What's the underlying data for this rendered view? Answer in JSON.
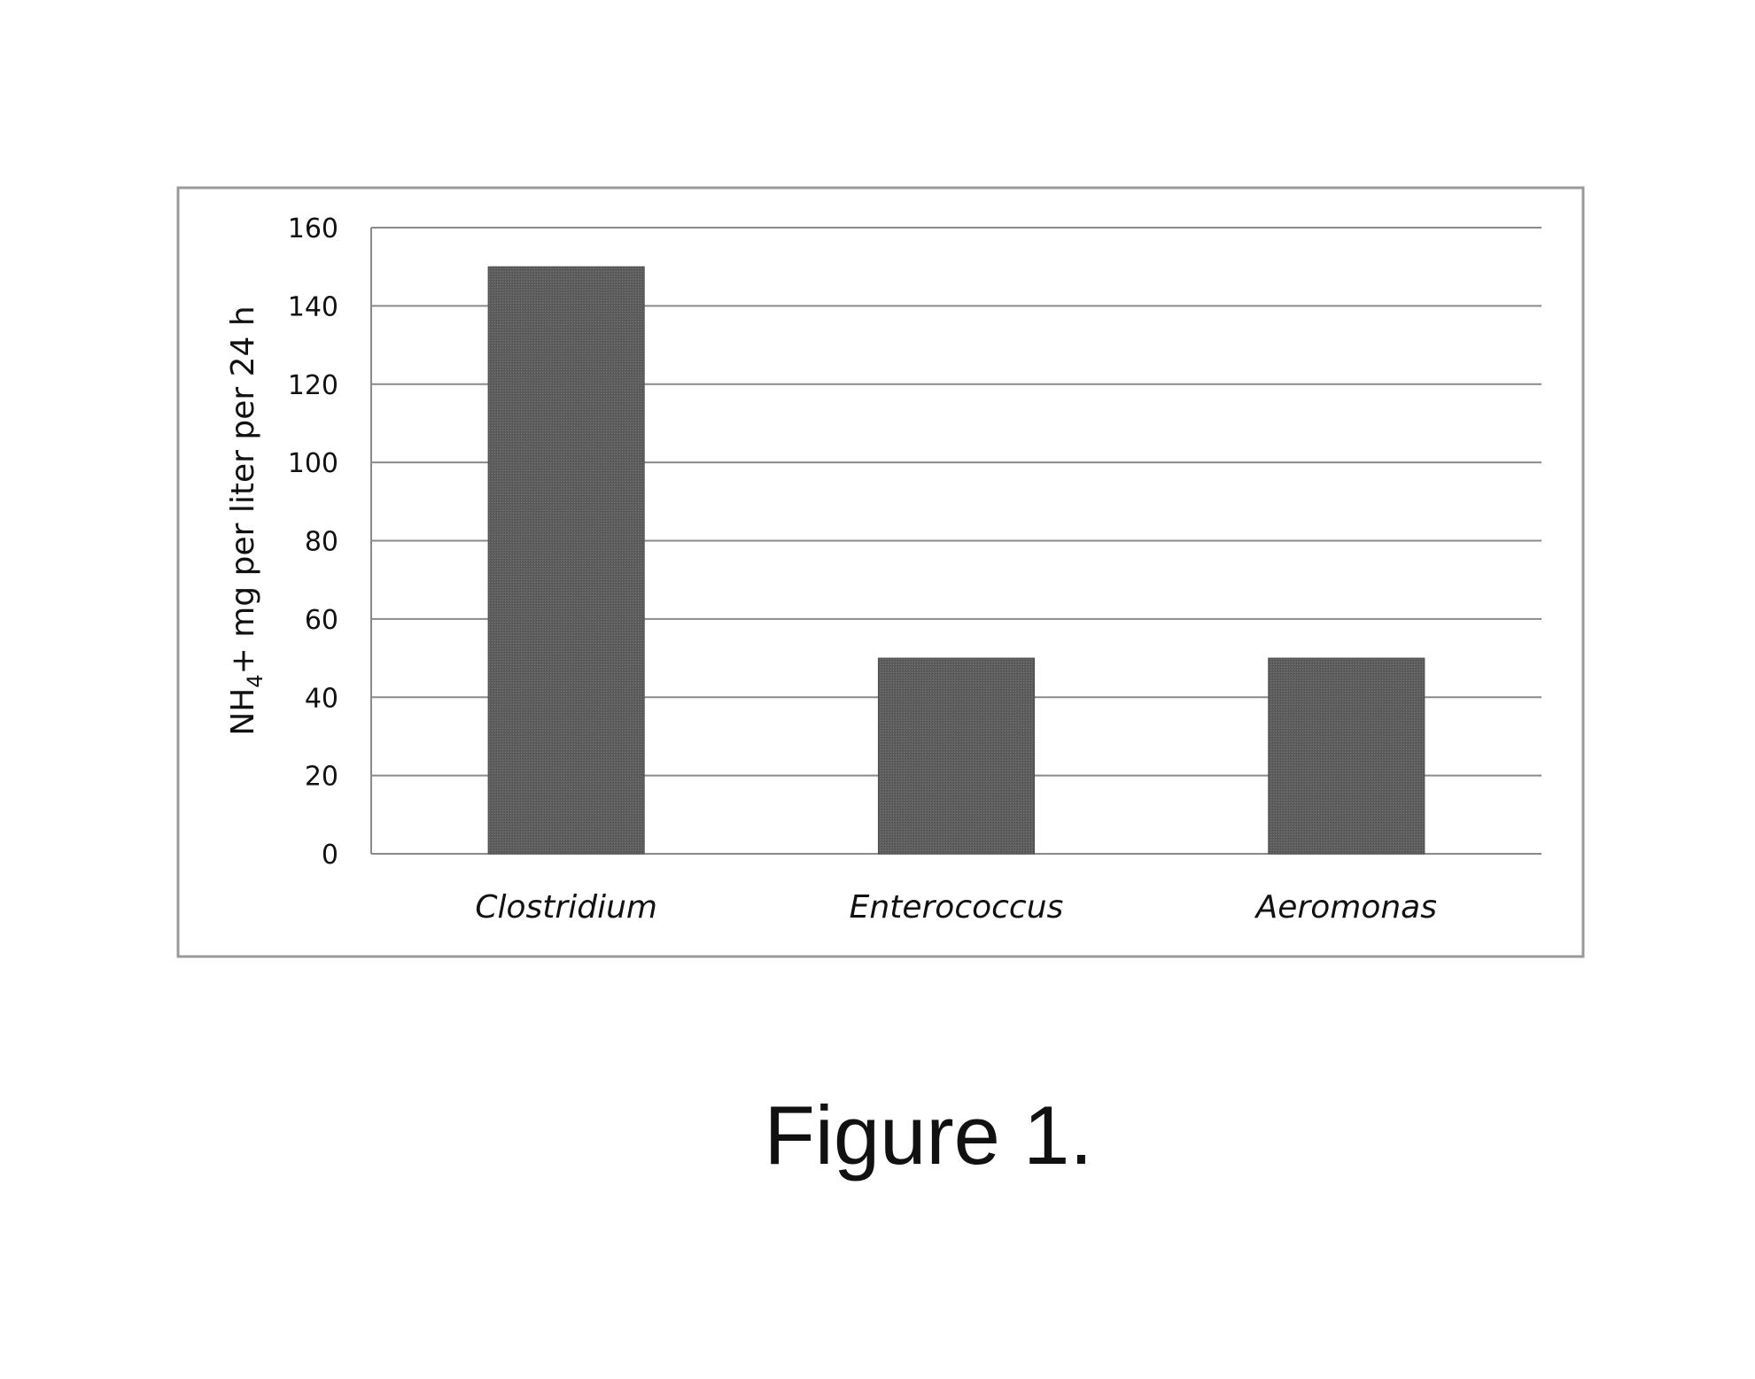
{
  "chart_data": {
    "type": "bar",
    "categories": [
      "Clostridium",
      "Enterococcus",
      "Aeromonas"
    ],
    "values": [
      150,
      50,
      50
    ],
    "ylabel": {
      "main": "NH",
      "subscript": "4",
      "rest": "+ mg per liter per 24 h"
    },
    "ylim": [
      0,
      160
    ],
    "yticks": [
      0,
      20,
      40,
      60,
      80,
      100,
      120,
      140,
      160
    ],
    "grid": true,
    "legend": "none",
    "bar_color": "#5a5a5a",
    "grid_color": "#8a8a8a",
    "frame_color": "#9a9a9a"
  },
  "caption": "Figure 1."
}
